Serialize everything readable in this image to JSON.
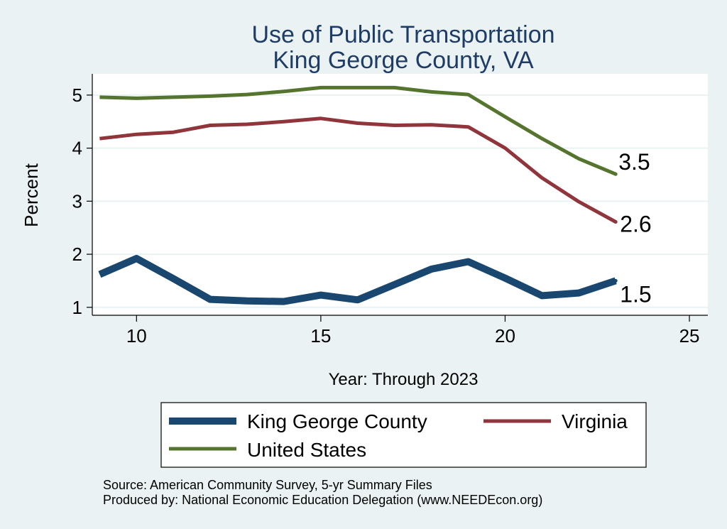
{
  "chart_data": {
    "type": "line",
    "title": "Use of Public Transportation",
    "subtitle": "King George County, VA",
    "xlabel": "Year: Through 2023",
    "ylabel": "Percent",
    "xlim": [
      8.8,
      25.5
    ],
    "ylim": [
      0.85,
      5.4
    ],
    "xticks": [
      10,
      15,
      20,
      25
    ],
    "yticks": [
      1,
      2,
      3,
      4,
      5
    ],
    "grid": true,
    "legend_position": "bottom",
    "x": [
      9,
      10,
      11,
      12,
      13,
      14,
      15,
      16,
      17,
      18,
      19,
      20,
      21,
      22,
      23
    ],
    "series": [
      {
        "name": "King George County",
        "color": "#1a476f",
        "line_width": "thick",
        "values": [
          1.62,
          1.92,
          1.54,
          1.15,
          1.12,
          1.11,
          1.23,
          1.14,
          1.43,
          1.72,
          1.86,
          1.55,
          1.22,
          1.27,
          1.5
        ],
        "end_label": "1.5"
      },
      {
        "name": "Virginia",
        "color": "#90353b",
        "line_width": "medium",
        "values": [
          4.18,
          4.26,
          4.3,
          4.43,
          4.45,
          4.5,
          4.56,
          4.47,
          4.43,
          4.44,
          4.4,
          4.0,
          3.44,
          2.99,
          2.61
        ],
        "end_label": "2.6"
      },
      {
        "name": "United States",
        "color": "#55752f",
        "line_width": "medium",
        "values": [
          4.96,
          4.94,
          4.96,
          4.98,
          5.01,
          5.07,
          5.14,
          5.14,
          5.14,
          5.06,
          5.01,
          4.59,
          4.18,
          3.8,
          3.51
        ],
        "end_label": "3.5"
      }
    ]
  },
  "footer": {
    "source": "Source: American Community Survey, 5-yr Summary Files",
    "produced": "Produced by: National Economic Education Delegation (www.NEEDEcon.org)"
  }
}
